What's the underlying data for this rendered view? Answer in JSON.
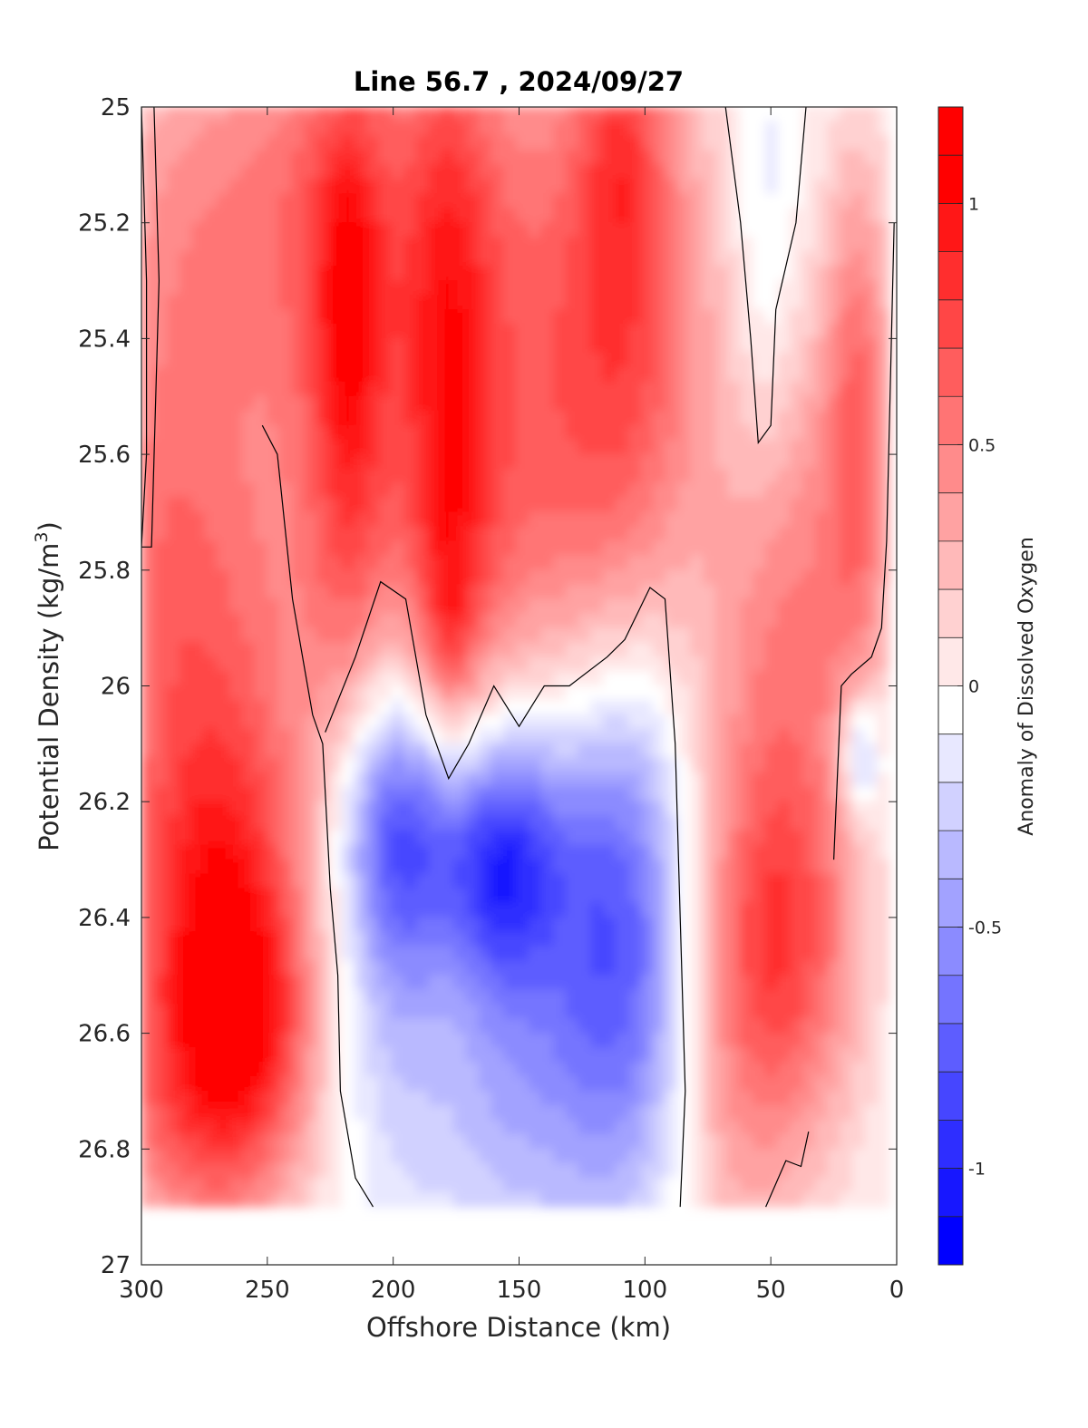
{
  "chart_data": {
    "type": "contour",
    "title": "Line 56.7 , 2024/09/27",
    "xlabel": "Offshore Distance (km)",
    "ylabel_prefix": "Potential Density (kg/m",
    "ylabel_sup": "3",
    "ylabel_suffix": ")",
    "colorbar_label": "Anomaly of Dissolved Oxygen",
    "xlim": [
      300,
      0
    ],
    "ylim": [
      25,
      27
    ],
    "x_ticks": [
      "300",
      "250",
      "200",
      "150",
      "100",
      "50",
      "0"
    ],
    "y_ticks": [
      "25",
      "25.2",
      "25.4",
      "25.6",
      "25.8",
      "26",
      "26.2",
      "26.4",
      "26.6",
      "26.8",
      "27"
    ],
    "colorbar_ticks": [
      "1",
      "0.5",
      "0",
      "-0.5",
      "-1"
    ],
    "colorbar_range": [
      -1.2,
      1.2
    ],
    "colorbar_step": 0.1,
    "colormap": {
      "negative": "#0000ff",
      "zero": "#ffffff",
      "positive": "#ff0000"
    },
    "data_extent": {
      "x": [
        3,
        300
      ],
      "y": [
        25,
        26.9
      ]
    },
    "features": [
      {
        "x": 268,
        "y": 26.52,
        "rx": 28,
        "ry": 0.3,
        "value": 1.0
      },
      {
        "x": 255,
        "y": 26.57,
        "rx": 14,
        "ry": 0.12,
        "value": 0.25
      },
      {
        "x": 272,
        "y": 26.0,
        "rx": 30,
        "ry": 0.35,
        "value": 0.35
      },
      {
        "x": 280,
        "y": 26.75,
        "rx": 35,
        "ry": 0.15,
        "value": 0.2
      },
      {
        "x": 295,
        "y": 25.7,
        "rx": 20,
        "ry": 0.35,
        "value": 0.3
      },
      {
        "x": 230,
        "y": 25.5,
        "rx": 45,
        "ry": 0.5,
        "value": 0.3
      },
      {
        "x": 250,
        "y": 25.15,
        "rx": 55,
        "ry": 0.25,
        "value": 0.35
      },
      {
        "x": 218,
        "y": 25.5,
        "rx": 12,
        "ry": 0.45,
        "value": 0.45
      },
      {
        "x": 218,
        "y": 25.35,
        "rx": 6,
        "ry": 0.15,
        "value": 0.2
      },
      {
        "x": 178,
        "y": 25.65,
        "rx": 13,
        "ry": 0.6,
        "value": 0.5
      },
      {
        "x": 178,
        "y": 25.9,
        "rx": 6,
        "ry": 0.1,
        "value": 0.2
      },
      {
        "x": 160,
        "y": 25.4,
        "rx": 40,
        "ry": 0.45,
        "value": 0.2
      },
      {
        "x": 130,
        "y": 25.45,
        "rx": 40,
        "ry": 0.5,
        "value": 0.35
      },
      {
        "x": 105,
        "y": 25.3,
        "rx": 20,
        "ry": 0.35,
        "value": 0.45
      },
      {
        "x": 110,
        "y": 25.05,
        "rx": 10,
        "ry": 0.15,
        "value": 0.25
      },
      {
        "x": 150,
        "y": 25.8,
        "rx": 40,
        "ry": 0.25,
        "value": 0.2
      },
      {
        "x": 52,
        "y": 25.3,
        "rx": 9,
        "ry": 0.3,
        "value": -0.2
      },
      {
        "x": 40,
        "y": 25.95,
        "rx": 18,
        "ry": 0.4,
        "value": 0.5
      },
      {
        "x": 15,
        "y": 25.55,
        "rx": 10,
        "ry": 0.35,
        "value": 0.6
      },
      {
        "x": 45,
        "y": 26.45,
        "rx": 22,
        "ry": 0.2,
        "value": 0.5
      },
      {
        "x": 65,
        "y": 26.4,
        "rx": 18,
        "ry": 0.5,
        "value": 0.3
      },
      {
        "x": 50,
        "y": 26.75,
        "rx": 30,
        "ry": 0.2,
        "value": 0.2
      },
      {
        "x": 198,
        "y": 26.25,
        "rx": 18,
        "ry": 0.18,
        "value": -0.75
      },
      {
        "x": 158,
        "y": 26.3,
        "rx": 18,
        "ry": 0.15,
        "value": -0.75
      },
      {
        "x": 110,
        "y": 26.4,
        "rx": 18,
        "ry": 0.3,
        "value": -0.5
      },
      {
        "x": 150,
        "y": 26.35,
        "rx": 55,
        "ry": 0.35,
        "value": -0.35
      },
      {
        "x": 160,
        "y": 26.7,
        "rx": 55,
        "ry": 0.2,
        "value": -0.2
      },
      {
        "x": 15,
        "y": 26.12,
        "rx": 6,
        "ry": 0.08,
        "value": -0.5
      }
    ],
    "zero_contours": [
      [
        [
          300,
          25.76
        ],
        [
          298,
          25.6
        ],
        [
          298,
          25.3
        ],
        [
          300,
          25.0
        ]
      ],
      [
        [
          295,
          25.0
        ],
        [
          293,
          25.3
        ],
        [
          296,
          25.76
        ],
        [
          300,
          25.76
        ]
      ],
      [
        [
          252,
          25.55
        ],
        [
          246,
          25.6
        ],
        [
          240,
          25.85
        ],
        [
          232,
          26.05
        ],
        [
          228,
          26.1
        ],
        [
          225,
          26.35
        ],
        [
          222,
          26.5
        ],
        [
          221,
          26.7
        ],
        [
          215,
          26.85
        ],
        [
          208,
          26.9
        ]
      ],
      [
        [
          227,
          26.08
        ],
        [
          215,
          25.95
        ],
        [
          205,
          25.82
        ],
        [
          195,
          25.85
        ],
        [
          187,
          26.05
        ],
        [
          178,
          26.16
        ],
        [
          170,
          26.1
        ],
        [
          160,
          26.0
        ],
        [
          150,
          26.07
        ],
        [
          140,
          26.0
        ],
        [
          130,
          26.0
        ],
        [
          115,
          25.95
        ],
        [
          108,
          25.92
        ],
        [
          98,
          25.83
        ],
        [
          92,
          25.85
        ],
        [
          88,
          26.1
        ],
        [
          86,
          26.4
        ],
        [
          84,
          26.7
        ],
        [
          86,
          26.9
        ]
      ],
      [
        [
          68,
          25.0
        ],
        [
          62,
          25.2
        ],
        [
          58,
          25.4
        ],
        [
          55,
          25.58
        ],
        [
          50,
          25.55
        ],
        [
          48,
          25.35
        ],
        [
          40,
          25.2
        ],
        [
          36,
          25.0
        ]
      ],
      [
        [
          25,
          26.3
        ],
        [
          22,
          26.0
        ],
        [
          18,
          25.98
        ],
        [
          10,
          25.95
        ],
        [
          6,
          25.9
        ],
        [
          4,
          25.75
        ],
        [
          1,
          25.2
        ]
      ],
      [
        [
          52,
          26.9
        ],
        [
          44,
          26.82
        ],
        [
          38,
          26.83
        ],
        [
          35,
          26.77
        ]
      ]
    ]
  }
}
